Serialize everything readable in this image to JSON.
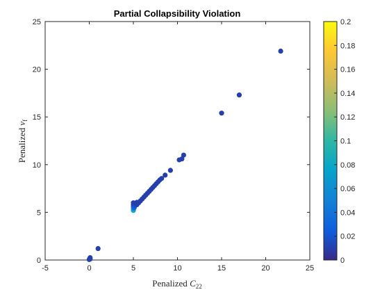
{
  "chart_data": {
    "type": "scatter",
    "title": "Partial Collapsibility Violation",
    "xlabel": {
      "text": "Penalized ",
      "var": "C",
      "sub": "22"
    },
    "ylabel": {
      "text": "Penalized ",
      "var": "v",
      "sub": "f"
    },
    "xlim": [
      -5,
      25
    ],
    "ylim": [
      0,
      25
    ],
    "xticks": [
      -5,
      0,
      5,
      10,
      15,
      20,
      25
    ],
    "yticks": [
      0,
      5,
      10,
      15,
      20,
      25
    ],
    "grid": false,
    "colorbar": {
      "range": [
        0,
        0.2
      ],
      "ticks": [
        0,
        0.02,
        0.04,
        0.06,
        0.08,
        0.1,
        0.12,
        0.14,
        0.16,
        0.18,
        0.2
      ],
      "tick_labels": [
        "0",
        "0.02",
        "0.04",
        "0.06",
        "0.08",
        "0.1",
        "0.12",
        "0.14",
        "0.16",
        "0.18",
        "0.2"
      ],
      "colormap": "parula",
      "position": "right"
    },
    "points": [
      {
        "x": 0.0,
        "y": 0.05,
        "c": 0.01
      },
      {
        "x": 0.05,
        "y": 0.15,
        "c": 0.01
      },
      {
        "x": 0.1,
        "y": 0.25,
        "c": 0.01
      },
      {
        "x": 0.1,
        "y": 0.1,
        "c": 0.01
      },
      {
        "x": 1.0,
        "y": 1.2,
        "c": 0.01
      },
      {
        "x": 5.0,
        "y": 5.2,
        "c": 0.08
      },
      {
        "x": 5.0,
        "y": 5.4,
        "c": 0.05
      },
      {
        "x": 5.0,
        "y": 5.6,
        "c": 0.02
      },
      {
        "x": 5.0,
        "y": 5.8,
        "c": 0.01
      },
      {
        "x": 5.0,
        "y": 6.0,
        "c": 0.01
      },
      {
        "x": 5.1,
        "y": 5.5,
        "c": 0.03
      },
      {
        "x": 5.2,
        "y": 5.7,
        "c": 0.02
      },
      {
        "x": 5.2,
        "y": 5.95,
        "c": 0.01
      },
      {
        "x": 5.4,
        "y": 5.8,
        "c": 0.01
      },
      {
        "x": 5.4,
        "y": 6.05,
        "c": 0.01
      },
      {
        "x": 5.6,
        "y": 6.0,
        "c": 0.01
      },
      {
        "x": 5.8,
        "y": 6.2,
        "c": 0.01
      },
      {
        "x": 6.0,
        "y": 6.4,
        "c": 0.01
      },
      {
        "x": 6.2,
        "y": 6.6,
        "c": 0.01
      },
      {
        "x": 6.4,
        "y": 6.8,
        "c": 0.01
      },
      {
        "x": 6.6,
        "y": 7.0,
        "c": 0.01
      },
      {
        "x": 6.8,
        "y": 7.2,
        "c": 0.01
      },
      {
        "x": 7.0,
        "y": 7.4,
        "c": 0.01
      },
      {
        "x": 7.2,
        "y": 7.6,
        "c": 0.01
      },
      {
        "x": 7.4,
        "y": 7.8,
        "c": 0.01
      },
      {
        "x": 7.6,
        "y": 8.0,
        "c": 0.01
      },
      {
        "x": 7.8,
        "y": 8.2,
        "c": 0.01
      },
      {
        "x": 8.0,
        "y": 8.4,
        "c": 0.01
      },
      {
        "x": 8.2,
        "y": 8.55,
        "c": 0.01
      },
      {
        "x": 8.6,
        "y": 8.9,
        "c": 0.01
      },
      {
        "x": 9.2,
        "y": 9.4,
        "c": 0.01
      },
      {
        "x": 10.2,
        "y": 10.5,
        "c": 0.01
      },
      {
        "x": 10.5,
        "y": 10.6,
        "c": 0.01
      },
      {
        "x": 10.7,
        "y": 11.0,
        "c": 0.01
      },
      {
        "x": 15.0,
        "y": 15.4,
        "c": 0.01
      },
      {
        "x": 17.0,
        "y": 17.3,
        "c": 0.01
      },
      {
        "x": 21.7,
        "y": 21.9,
        "c": 0.01
      }
    ]
  }
}
